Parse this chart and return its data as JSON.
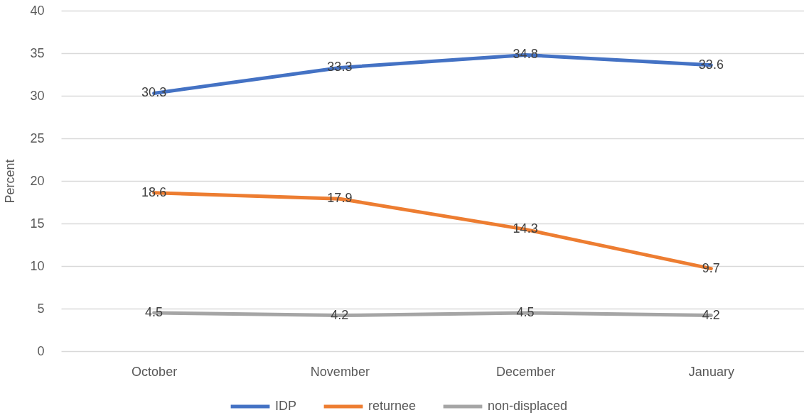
{
  "chart_data": {
    "type": "line",
    "ylabel": "Percent",
    "categories": [
      "October",
      "November",
      "December",
      "January"
    ],
    "series": [
      {
        "name": "IDP",
        "color": "#4472c4",
        "values": [
          30.3,
          33.3,
          34.8,
          33.6
        ]
      },
      {
        "name": "returnee",
        "color": "#ed7d31",
        "values": [
          18.6,
          17.9,
          14.3,
          9.7
        ]
      },
      {
        "name": "non-displaced",
        "color": "#a5a5a5",
        "values": [
          4.5,
          4.2,
          4.5,
          4.2
        ]
      }
    ],
    "ylim": [
      0,
      40
    ],
    "yticks": [
      0,
      5,
      10,
      15,
      20,
      25,
      30,
      35,
      40
    ],
    "grid": "y",
    "legend": "bottom",
    "data_labels": true,
    "line_style": "solid"
  }
}
